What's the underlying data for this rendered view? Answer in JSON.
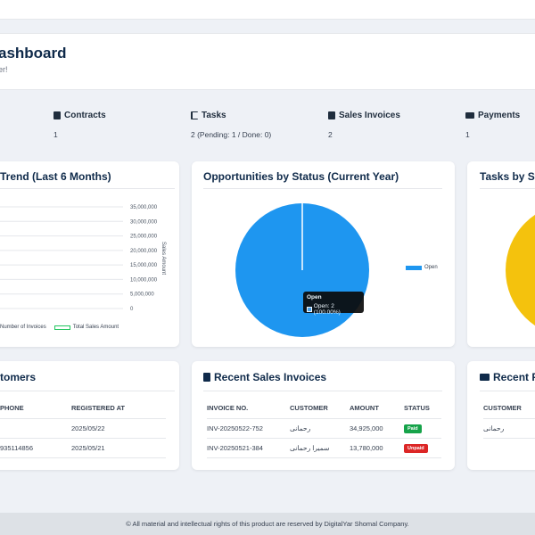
{
  "header": {
    "title": "ashboard",
    "subtitle": "er!"
  },
  "stats": [
    {
      "icon": "file-icon",
      "label": "Contracts",
      "value": "1"
    },
    {
      "icon": "tasks-list-icon",
      "label": "Tasks",
      "value": "2 (Pending: 1 / Done: 0)"
    },
    {
      "icon": "invoice-icon",
      "label": "Sales Invoices",
      "value": "2"
    },
    {
      "icon": "money-icon",
      "label": "Payments",
      "value": "1"
    }
  ],
  "trend_card": {
    "title": "Trend (Last 6 Months)"
  },
  "opportunities_card": {
    "title": "Opportunities by Status (Current Year)"
  },
  "tasks_card": {
    "title": "Tasks by Sta"
  },
  "customers_card": {
    "title": "tomers",
    "columns": [
      "PHONE",
      "REGISTERED AT"
    ],
    "rows": [
      [
        "",
        "2025/05/22"
      ],
      [
        "935114856",
        "2025/05/21"
      ]
    ]
  },
  "invoices_card": {
    "title": "Recent Sales Invoices",
    "columns": [
      "INVOICE NO.",
      "CUSTOMER",
      "AMOUNT",
      "STATUS"
    ],
    "rows": [
      {
        "no": "INV-20250522-752",
        "customer": "رحمانی",
        "amount": "34,925,000",
        "status": "Paid",
        "status_color": "#16a34a"
      },
      {
        "no": "INV-20250521-384",
        "customer": "سمیرا رحمانی",
        "amount": "13,780,000",
        "status": "Unpaid",
        "status_color": "#dc2626"
      }
    ]
  },
  "payments_card": {
    "title": "Recent P",
    "columns": [
      "CUSTOMER"
    ],
    "rows": [
      [
        "رحمانی"
      ]
    ]
  },
  "footer": {
    "text": "© All material and intellectual rights of this product are reserved by DigitalYar Shomal Company."
  },
  "tooltip": {
    "title": "Open",
    "body": "Open: 2 (100.00%)"
  },
  "chart_data": [
    {
      "type": "line",
      "title": "Trend (Last 6 Months)",
      "ylabel": "Sales Amount",
      "y_ticks": [
        "35,000,000",
        "30,000,000",
        "25,000,000",
        "20,000,000",
        "15,000,000",
        "10,000,000",
        "5,000,000",
        "0"
      ],
      "ylim": [
        0,
        35000000
      ],
      "series": [
        {
          "name": "Number of Invoices",
          "color": "#3b82f6"
        },
        {
          "name": "Total Sales Amount",
          "color": "#22c55e"
        }
      ]
    },
    {
      "type": "pie",
      "title": "Opportunities by Status (Current Year)",
      "slices": [
        {
          "label": "Open",
          "value": 2,
          "color": "#1e96f0"
        }
      ],
      "legend": "right"
    },
    {
      "type": "pie",
      "title": "Tasks by Sta",
      "slices": [
        {
          "value": 1,
          "color": "#f4c20d"
        }
      ]
    }
  ],
  "colors": {
    "primary_text": "#0f2a4a",
    "pie_blue": "#1e96f0",
    "pie_yellow": "#f4c20d"
  }
}
